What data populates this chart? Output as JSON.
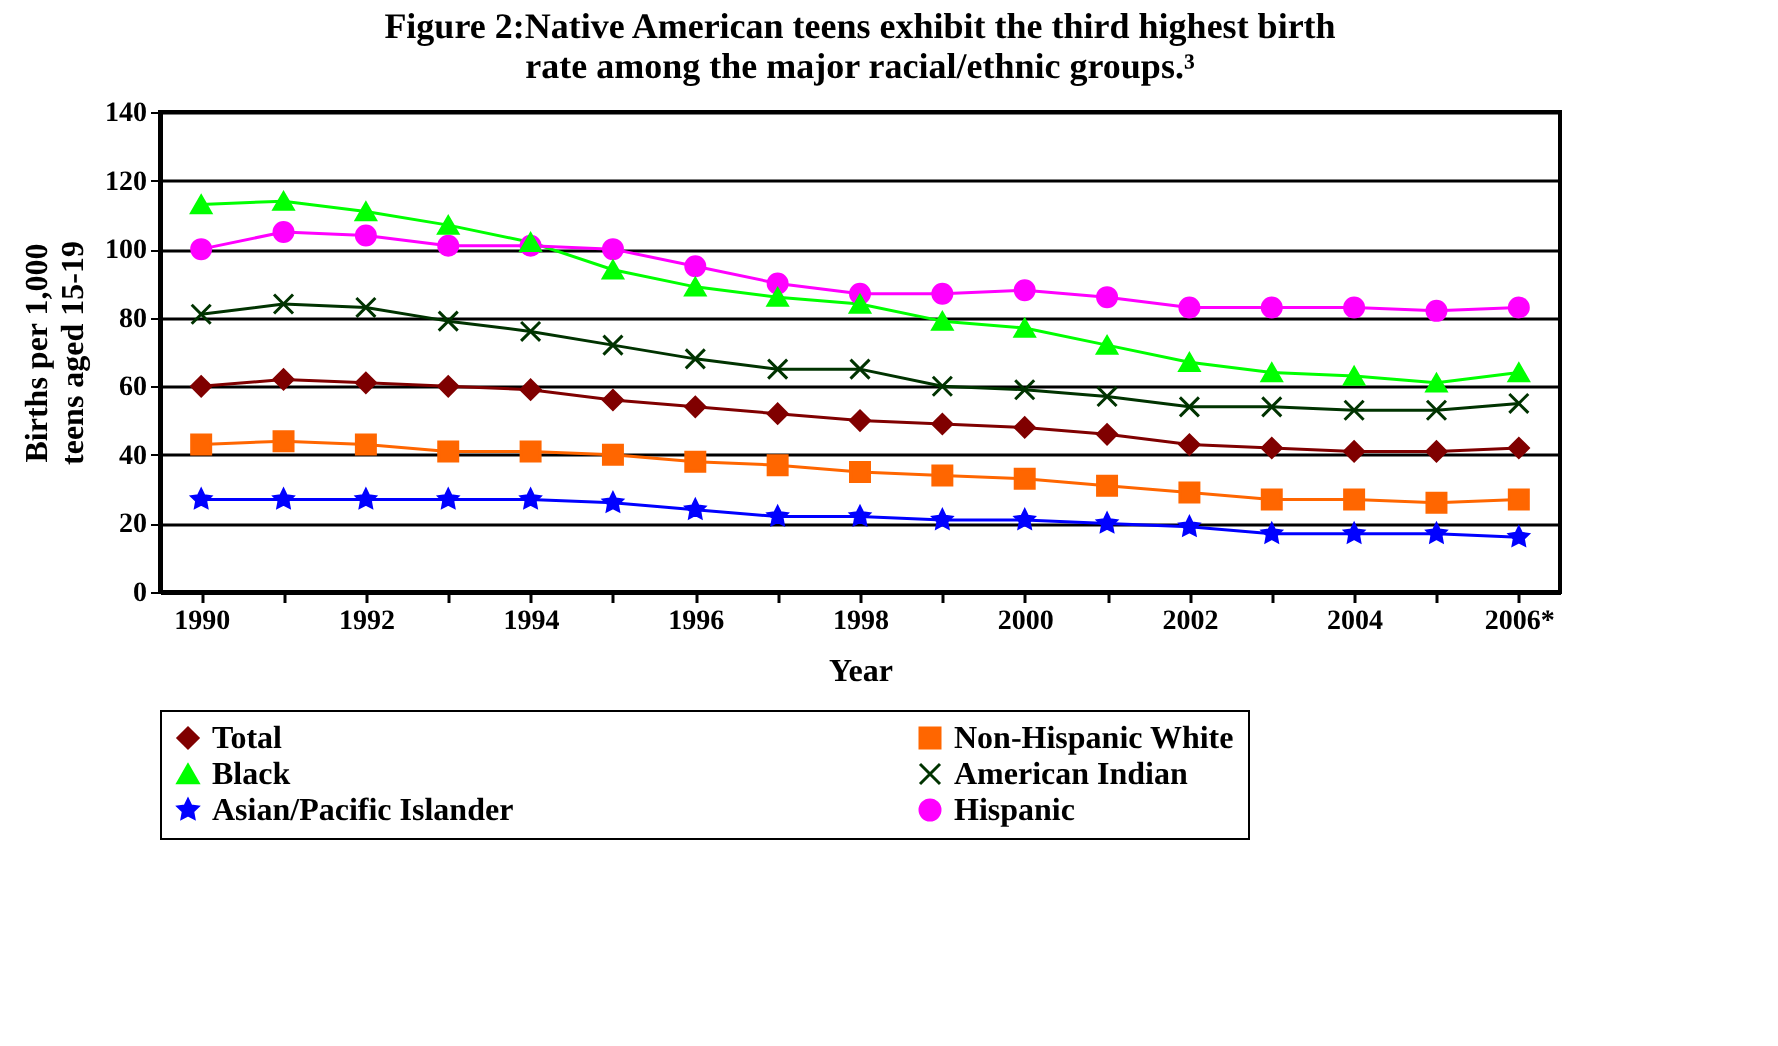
{
  "chart_data": {
    "type": "line",
    "title": "Figure 2:Native American teens exhibit the third highest birth\nrate among the major racial/ethnic groups.³",
    "xlabel": "Year",
    "ylabel": "Births per 1,000\nteens aged 15-19",
    "categories": [
      "1990",
      null,
      "1992",
      null,
      "1994",
      null,
      "1996",
      null,
      "1998",
      null,
      "2000",
      null,
      "2002",
      null,
      "2004",
      null,
      "2006*"
    ],
    "ylim": [
      0,
      140
    ],
    "yticks": [
      0,
      20,
      40,
      60,
      80,
      100,
      120,
      140
    ],
    "grid": "y",
    "legend": "bottom",
    "line_style": "solid",
    "series": [
      {
        "name": "Total",
        "color": "#800000",
        "marker": "diamond",
        "values": [
          60,
          62,
          61,
          60,
          59,
          56,
          54,
          52,
          50,
          49,
          48,
          46,
          43,
          42,
          41,
          41,
          42
        ]
      },
      {
        "name": "Non-Hispanic White",
        "color": "#ff6600",
        "marker": "square",
        "values": [
          43,
          44,
          43,
          41,
          41,
          40,
          38,
          37,
          35,
          34,
          33,
          31,
          29,
          27,
          27,
          26,
          27
        ]
      },
      {
        "name": "Black",
        "color": "#00ff00",
        "marker": "triangle",
        "values": [
          113,
          114,
          111,
          107,
          102,
          94,
          89,
          86,
          84,
          79,
          77,
          72,
          67,
          64,
          63,
          61,
          64
        ]
      },
      {
        "name": "American Indian",
        "color": "#003300",
        "marker": "cross",
        "values": [
          81,
          84,
          83,
          79,
          76,
          72,
          68,
          65,
          65,
          60,
          59,
          57,
          54,
          54,
          53,
          53,
          55
        ]
      },
      {
        "name": "Asian/Pacific Islander",
        "color": "#0000ff",
        "marker": "star",
        "values": [
          27,
          27,
          27,
          27,
          27,
          26,
          24,
          22,
          22,
          21,
          21,
          20,
          19,
          17,
          17,
          17,
          16
        ]
      },
      {
        "name": "Hispanic",
        "color": "#ff00ff",
        "marker": "circle",
        "values": [
          100,
          105,
          104,
          101,
          101,
          100,
          95,
          90,
          87,
          87,
          88,
          86,
          83,
          83,
          83,
          82,
          83
        ]
      }
    ]
  }
}
